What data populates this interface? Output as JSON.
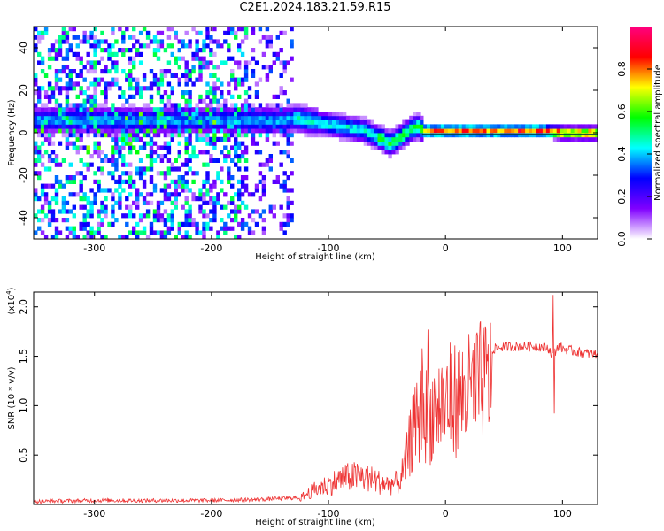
{
  "title": "C2E1.2024.183.21.59.R15",
  "chart_data": [
    {
      "type": "heatmap",
      "xlabel": "Height of straight line (km)",
      "ylabel": "Frequency (Hz)",
      "xlim": [
        -352,
        130
      ],
      "ylim": [
        -50,
        50
      ],
      "x_ticks": [
        -300,
        -200,
        -100,
        0,
        100
      ],
      "x_tick_labels": [
        "-300",
        "-200",
        "-100",
        "0",
        "100"
      ],
      "y_ticks": [
        -40,
        -20,
        0,
        20,
        40
      ],
      "y_tick_labels": [
        "-40",
        "-20",
        "0",
        "20",
        "40"
      ],
      "colorbar": {
        "label": "Normalized spectral amplitude",
        "range": [
          0,
          1
        ],
        "ticks": [
          0.0,
          0.2,
          0.4,
          0.6,
          0.8
        ],
        "tick_labels": [
          "0.0",
          "0.2",
          "0.4",
          "0.6",
          "0.8"
        ],
        "colors": [
          "#ffffff",
          "#8000ff",
          "#0000ff",
          "#00ffff",
          "#00ff00",
          "#ffff00",
          "#ff0000",
          "#ff0080"
        ]
      },
      "ridge": {
        "x": [
          -180,
          -160,
          -140,
          -130,
          -120,
          -110,
          -100,
          -90,
          -80,
          -70,
          -60,
          -55,
          -50,
          -45,
          -40,
          -35,
          -30,
          -25,
          -20,
          -10,
          0,
          20,
          40,
          60,
          80,
          100,
          120,
          130
        ],
        "y": [
          6,
          6,
          6,
          7,
          6,
          5,
          4,
          3,
          2,
          1,
          -2,
          -3,
          -5,
          -4,
          -2,
          0,
          2,
          3,
          1,
          1,
          1,
          1,
          1,
          1,
          1,
          0,
          0,
          0
        ]
      }
    },
    {
      "type": "line",
      "xlabel": "Height of straight line (km)",
      "ylabel": "SNR (10 * v/v)",
      "multiplier_label": "(x10",
      "multiplier_exp": "4",
      "multiplier_close": ")",
      "xlim": [
        -352,
        130
      ],
      "ylim": [
        0,
        2.15
      ],
      "x_ticks": [
        -300,
        -200,
        -100,
        0,
        100
      ],
      "x_tick_labels": [
        "-300",
        "-200",
        "-100",
        "0",
        "100"
      ],
      "y_ticks": [
        0.5,
        1.0,
        1.5,
        2.0
      ],
      "y_tick_labels": [
        "0.5",
        "1.0",
        "1.5",
        "2.0"
      ],
      "series_color": "#ee3333",
      "envelope": {
        "x": [
          -352,
          -300,
          -250,
          -200,
          -160,
          -140,
          -125,
          -120,
          -110,
          -100,
          -90,
          -80,
          -70,
          -60,
          -50,
          -40,
          -35,
          -30,
          -25,
          -20,
          -15,
          -10,
          0,
          10,
          20,
          30,
          40,
          50,
          60,
          70,
          80,
          88,
          92,
          96,
          100,
          110,
          120,
          130
        ],
        "y": [
          0.03,
          0.04,
          0.04,
          0.04,
          0.05,
          0.06,
          0.07,
          0.12,
          0.2,
          0.25,
          0.32,
          0.35,
          0.35,
          0.3,
          0.25,
          0.28,
          0.45,
          0.8,
          1.0,
          1.2,
          1.1,
          1.2,
          1.3,
          1.35,
          1.4,
          1.5,
          1.57,
          1.6,
          1.6,
          1.6,
          1.6,
          1.58,
          1.5,
          1.6,
          1.58,
          1.55,
          1.53,
          1.52
        ]
      },
      "spikes": [
        {
          "x": -15,
          "y": 1.77
        },
        {
          "x": -20,
          "y": 1.58
        },
        {
          "x": -28,
          "y": 1.1
        },
        {
          "x": 92,
          "y": 2.12
        },
        {
          "x": 93,
          "y": 0.92
        }
      ]
    }
  ]
}
